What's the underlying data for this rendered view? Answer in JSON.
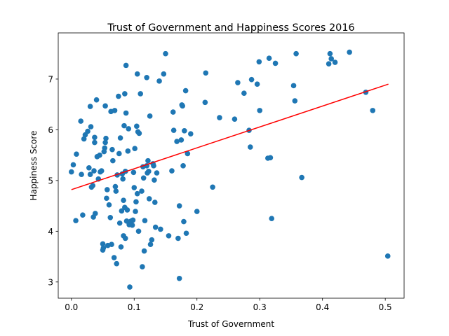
{
  "chart_data": {
    "type": "scatter",
    "title": "Trust of Government and Happiness Scores 2016",
    "xlabel": "Trust of Government",
    "ylabel": "Happiness Score",
    "xlim": [
      -0.021,
      0.53
    ],
    "ylim": [
      2.68,
      7.91
    ],
    "xticks": [
      {
        "value": 0,
        "label": "0.0"
      },
      {
        "value": 0.1,
        "label": "0.1"
      },
      {
        "value": 0.2,
        "label": "0.2"
      },
      {
        "value": 0.3,
        "label": "0.3"
      },
      {
        "value": 0.4,
        "label": "0.4"
      },
      {
        "value": 0.5,
        "label": "0.5"
      }
    ],
    "yticks": [
      3,
      4,
      5,
      6,
      7
    ],
    "series": [
      {
        "type": "scatter",
        "color": "#1f77b4",
        "x": [
          0.0,
          0.003,
          0.008,
          0.007,
          0.015,
          0.016,
          0.018,
          0.02,
          0.022,
          0.026,
          0.028,
          0.03,
          0.03,
          0.031,
          0.032,
          0.034,
          0.035,
          0.036,
          0.037,
          0.037,
          0.038,
          0.04,
          0.041,
          0.043,
          0.045,
          0.046,
          0.048,
          0.05,
          0.05,
          0.051,
          0.052,
          0.053,
          0.054,
          0.054,
          0.055,
          0.056,
          0.057,
          0.058,
          0.06,
          0.062,
          0.063,
          0.064,
          0.065,
          0.066,
          0.068,
          0.069,
          0.07,
          0.071,
          0.072,
          0.073,
          0.075,
          0.076,
          0.077,
          0.078,
          0.079,
          0.08,
          0.081,
          0.082,
          0.083,
          0.083,
          0.084,
          0.085,
          0.085,
          0.086,
          0.086,
          0.087,
          0.087,
          0.088,
          0.089,
          0.09,
          0.091,
          0.092,
          0.093,
          0.095,
          0.097,
          0.098,
          0.099,
          0.1,
          0.101,
          0.102,
          0.103,
          0.104,
          0.105,
          0.105,
          0.106,
          0.107,
          0.108,
          0.11,
          0.112,
          0.113,
          0.114,
          0.115,
          0.116,
          0.117,
          0.12,
          0.12,
          0.121,
          0.122,
          0.123,
          0.124,
          0.125,
          0.126,
          0.128,
          0.13,
          0.131,
          0.132,
          0.133,
          0.134,
          0.136,
          0.14,
          0.142,
          0.147,
          0.15,
          0.155,
          0.16,
          0.162,
          0.163,
          0.168,
          0.17,
          0.172,
          0.172,
          0.175,
          0.176,
          0.177,
          0.178,
          0.179,
          0.18,
          0.182,
          0.183,
          0.185,
          0.19,
          0.2,
          0.213,
          0.214,
          0.225,
          0.236,
          0.26,
          0.265,
          0.275,
          0.283,
          0.285,
          0.287,
          0.296,
          0.299,
          0.3,
          0.313,
          0.315,
          0.317,
          0.319,
          0.325,
          0.354,
          0.356,
          0.358,
          0.367,
          0.41,
          0.412,
          0.414,
          0.42,
          0.443,
          0.469,
          0.48,
          0.504
        ],
        "values": [
          5.17,
          5.31,
          5.52,
          4.21,
          6.17,
          5.12,
          4.32,
          5.82,
          5.9,
          5.97,
          5.25,
          6.46,
          5.12,
          6.06,
          4.87,
          4.9,
          4.28,
          5.19,
          5.85,
          5.75,
          4.35,
          6.59,
          5.47,
          5.03,
          5.5,
          5.17,
          5.19,
          3.75,
          3.63,
          3.67,
          5.57,
          5.64,
          6.47,
          5.75,
          5.83,
          4.65,
          4.82,
          3.72,
          4.52,
          4.27,
          6.36,
          3.74,
          5.61,
          5.39,
          3.48,
          6.38,
          4.88,
          4.79,
          3.36,
          5.11,
          6.66,
          5.53,
          4.16,
          5.84,
          3.69,
          4.4,
          5.13,
          5.03,
          3.91,
          4.61,
          6.08,
          6.71,
          4.47,
          3.86,
          5.18,
          7.27,
          6.33,
          4.2,
          4.42,
          5.58,
          6.02,
          4.13,
          2.9,
          4.2,
          4.12,
          4.22,
          5.16,
          4.86,
          5.63,
          4.39,
          4.58,
          6.07,
          7.1,
          4.74,
          5.96,
          4.0,
          5.93,
          6.71,
          4.79,
          3.3,
          5.27,
          5.05,
          3.61,
          4.21,
          7.03,
          5.29,
          5.15,
          5.39,
          5.18,
          4.64,
          6.27,
          3.74,
          3.83,
          5.33,
          5.29,
          5.01,
          4.57,
          4.08,
          5.15,
          6.96,
          4.04,
          7.1,
          7.5,
          3.91,
          5.19,
          6.35,
          5.99,
          5.77,
          3.86,
          4.5,
          3.07,
          5.8,
          6.49,
          6.47,
          5.29,
          4.19,
          5.98,
          6.77,
          3.96,
          5.53,
          5.92,
          4.39,
          6.54,
          7.12,
          4.87,
          6.24,
          6.21,
          6.93,
          6.72,
          5.99,
          5.66,
          6.99,
          6.9,
          7.34,
          6.38,
          5.44,
          7.41,
          5.45,
          4.25,
          7.31,
          6.87,
          6.57,
          7.5,
          5.06,
          7.3,
          7.5,
          7.4,
          7.33,
          7.53,
          6.74,
          6.38,
          3.51
        ]
      },
      {
        "type": "line",
        "color": "#ff0000",
        "x": [
          0.0,
          0.505
        ],
        "values": [
          4.82,
          6.9
        ]
      }
    ]
  }
}
